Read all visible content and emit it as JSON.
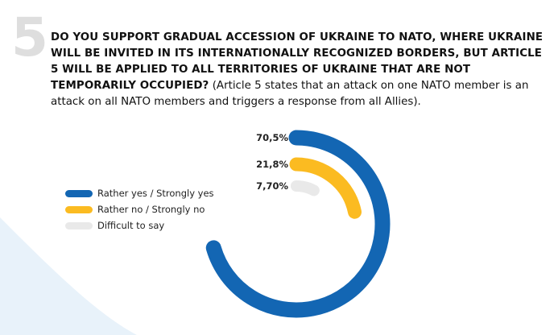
{
  "number": "5",
  "question": {
    "bold_text": "DO YOU SUPPORT GRADUAL ACCESSION OF UKRAINE TO NATO, WHERE UKRAINE WILL BE INVITED IN ITS INTERNATIONALLY RECOGNIZED BORDERS, BUT ARTICLE 5 WILL BE APPLIED TO ALL TERRITORIES OF UKRAINE THAT ARE NOT TEMPORARILY OCCUPIED?",
    "note": "(Article 5 states that an attack on one NATO member is an attack on all NATO members and triggers a response from all Allies)."
  },
  "colors": {
    "yes": "#1366b3",
    "no": "#fbbb21",
    "difficult": "#e9e9e9",
    "number": "#dedede",
    "background_shape": "#e8f2fa"
  },
  "chart_data": {
    "type": "radial-bar",
    "title": "",
    "categories": [
      "Rather yes / Strongly yes",
      "Rather no / Strongly no",
      "Difficult to say"
    ],
    "values": [
      70.5,
      21.8,
      7.7
    ],
    "value_labels": [
      "70,5%",
      "21,8%",
      "7,70%"
    ],
    "max": 100,
    "legend": {
      "position": "left",
      "items": [
        {
          "label": "Rather yes / Strongly yes",
          "color": "#1366b3"
        },
        {
          "label": "Rather no / Strongly no",
          "color": "#fbbb21"
        },
        {
          "label": "Difficult to say",
          "color": "#e9e9e9"
        }
      ]
    }
  }
}
